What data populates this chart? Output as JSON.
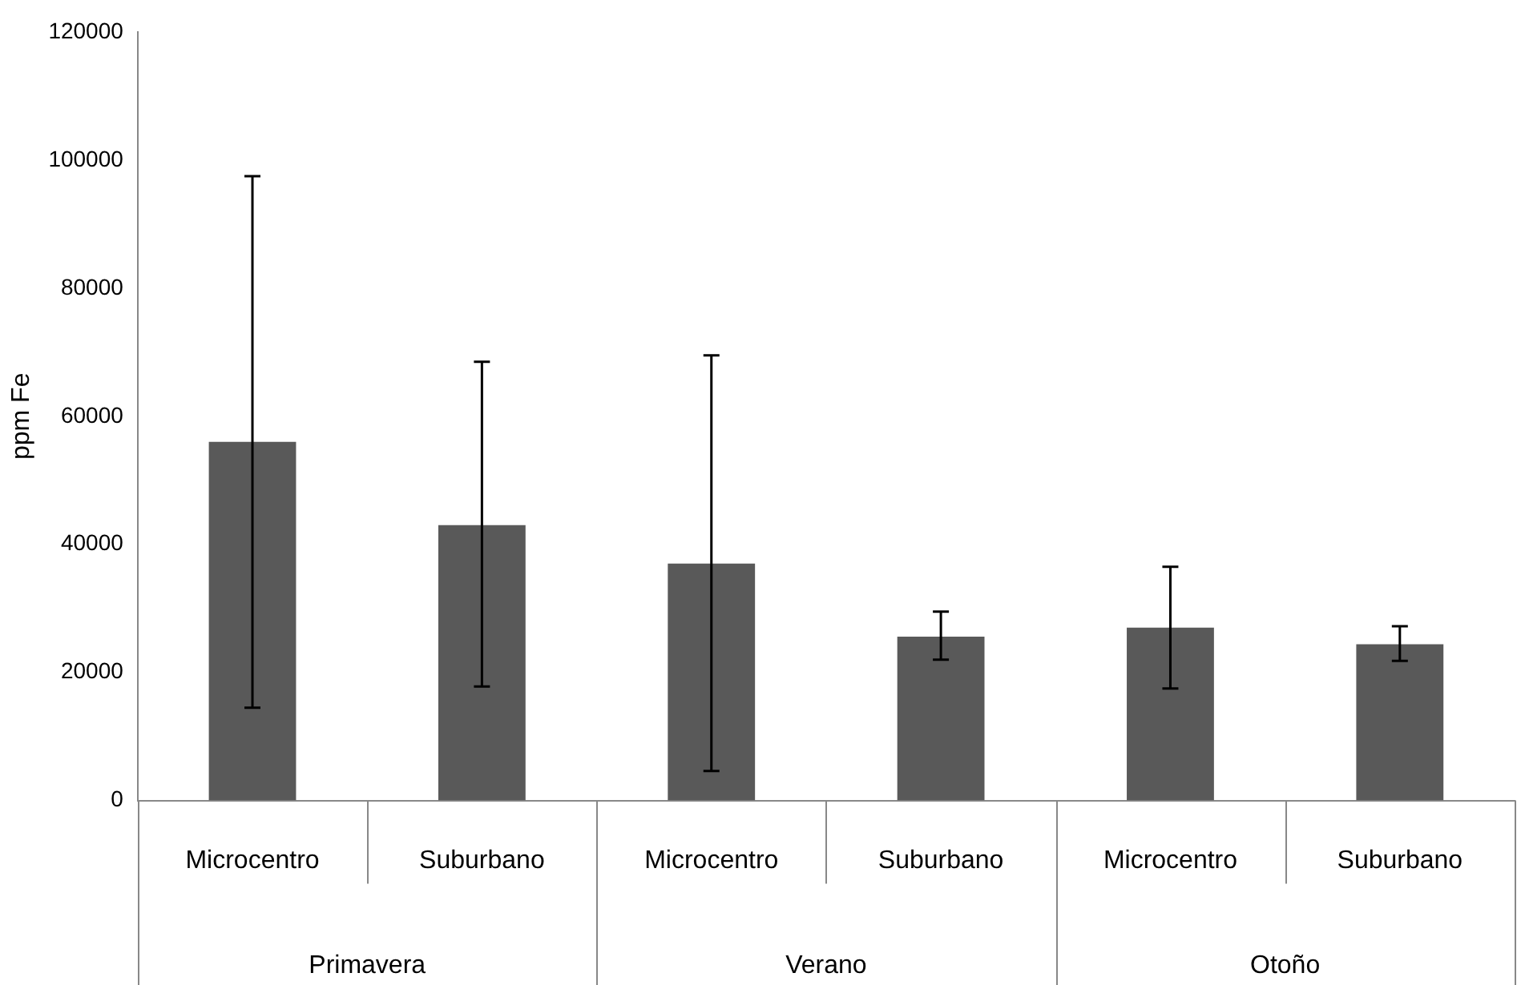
{
  "chart_data": {
    "type": "bar",
    "ylabel": "ppm Fe",
    "categories": [
      "Microcentro",
      "Suburbano",
      "Microcentro",
      "Suburbano",
      "Microcentro",
      "Suburbano"
    ],
    "values": [
      56000,
      43000,
      37000,
      25600,
      27000,
      24400
    ],
    "errors": [
      [
        14500,
        97500
      ],
      [
        17800,
        68500
      ],
      [
        4600,
        69500
      ],
      [
        22000,
        29500
      ],
      [
        17500,
        36500
      ],
      [
        21800,
        27200
      ]
    ],
    "color": "#595959",
    "annotations": [
      "Primavera",
      "Verano",
      "Otoño"
    ],
    "ylim": [
      0,
      120000
    ],
    "yticks": [
      0,
      20000,
      40000,
      60000,
      80000,
      100000,
      120000
    ],
    "grid": false,
    "legend": false
  }
}
